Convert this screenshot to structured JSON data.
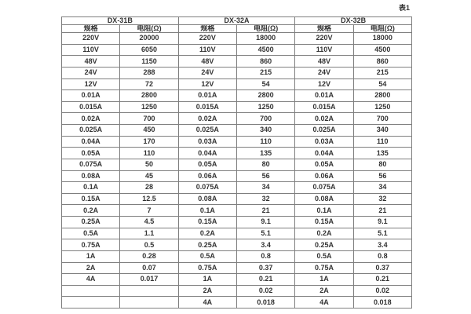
{
  "caption": "表1",
  "colors": {
    "background": "#ffffff",
    "border": "#7f7f7f",
    "outer_border": "#666666",
    "text": "#333333"
  },
  "table": {
    "groups": [
      {
        "name": "DX-31B",
        "col_headers": [
          "规格",
          "电阻(Ω)"
        ],
        "rows": [
          [
            "220V",
            "20000"
          ],
          [
            "110V",
            "6050"
          ],
          [
            "48V",
            "1150"
          ],
          [
            "24V",
            "288"
          ],
          [
            "12V",
            "72"
          ],
          [
            "0.01A",
            "2800"
          ],
          [
            "0.015A",
            "1250"
          ],
          [
            "0.02A",
            "700"
          ],
          [
            "0.025A",
            "450"
          ],
          [
            "0.04A",
            "170"
          ],
          [
            "0.05A",
            "110"
          ],
          [
            "0.075A",
            "50"
          ],
          [
            "0.08A",
            "45"
          ],
          [
            "0.1A",
            "28"
          ],
          [
            "0.15A",
            "12.5"
          ],
          [
            "0.2A",
            "7"
          ],
          [
            "0.25A",
            "4.5"
          ],
          [
            "0.5A",
            "1.1"
          ],
          [
            "0.75A",
            "0.5"
          ],
          [
            "1A",
            "0.28"
          ],
          [
            "2A",
            "0.07"
          ],
          [
            "4A",
            "0.017"
          ],
          [
            "",
            ""
          ],
          [
            "",
            ""
          ]
        ]
      },
      {
        "name": "DX-32A",
        "col_headers": [
          "规格",
          "电阻(Ω)"
        ],
        "rows": [
          [
            "220V",
            "18000"
          ],
          [
            "110V",
            "4500"
          ],
          [
            "48V",
            "860"
          ],
          [
            "24V",
            "215"
          ],
          [
            "12V",
            "54"
          ],
          [
            "0.01A",
            "2800"
          ],
          [
            "0.015A",
            "1250"
          ],
          [
            "0.02A",
            "700"
          ],
          [
            "0.025A",
            "340"
          ],
          [
            "0.03A",
            "110"
          ],
          [
            "0.04A",
            "135"
          ],
          [
            "0.05A",
            "80"
          ],
          [
            "0.06A",
            "56"
          ],
          [
            "0.075A",
            "34"
          ],
          [
            "0.08A",
            "32"
          ],
          [
            "0.1A",
            "21"
          ],
          [
            "0.15A",
            "9.1"
          ],
          [
            "0.2A",
            "5.1"
          ],
          [
            "0.25A",
            "3.4"
          ],
          [
            "0.5A",
            "0.8"
          ],
          [
            "0.75A",
            "0.37"
          ],
          [
            "1A",
            "0.21"
          ],
          [
            "2A",
            "0.02"
          ],
          [
            "4A",
            "0.018"
          ]
        ]
      },
      {
        "name": "DX-32B",
        "col_headers": [
          "规格",
          "电阻(Ω)"
        ],
        "rows": [
          [
            "220V",
            "18000"
          ],
          [
            "110V",
            "4500"
          ],
          [
            "48V",
            "860"
          ],
          [
            "24V",
            "215"
          ],
          [
            "12V",
            "54"
          ],
          [
            "0.01A",
            "2800"
          ],
          [
            "0.015A",
            "1250"
          ],
          [
            "0.02A",
            "700"
          ],
          [
            "0.025A",
            "340"
          ],
          [
            "0.03A",
            "110"
          ],
          [
            "0.04A",
            "135"
          ],
          [
            "0.05A",
            "80"
          ],
          [
            "0.06A",
            "56"
          ],
          [
            "0.075A",
            "34"
          ],
          [
            "0.08A",
            "32"
          ],
          [
            "0.1A",
            "21"
          ],
          [
            "0.15A",
            "9.1"
          ],
          [
            "0.2A",
            "5.1"
          ],
          [
            "0.25A",
            "3.4"
          ],
          [
            "0.5A",
            "0.8"
          ],
          [
            "0.75A",
            "0.37"
          ],
          [
            "1A",
            "0.21"
          ],
          [
            "2A",
            "0.02"
          ],
          [
            "4A",
            "0.018"
          ]
        ]
      }
    ]
  }
}
